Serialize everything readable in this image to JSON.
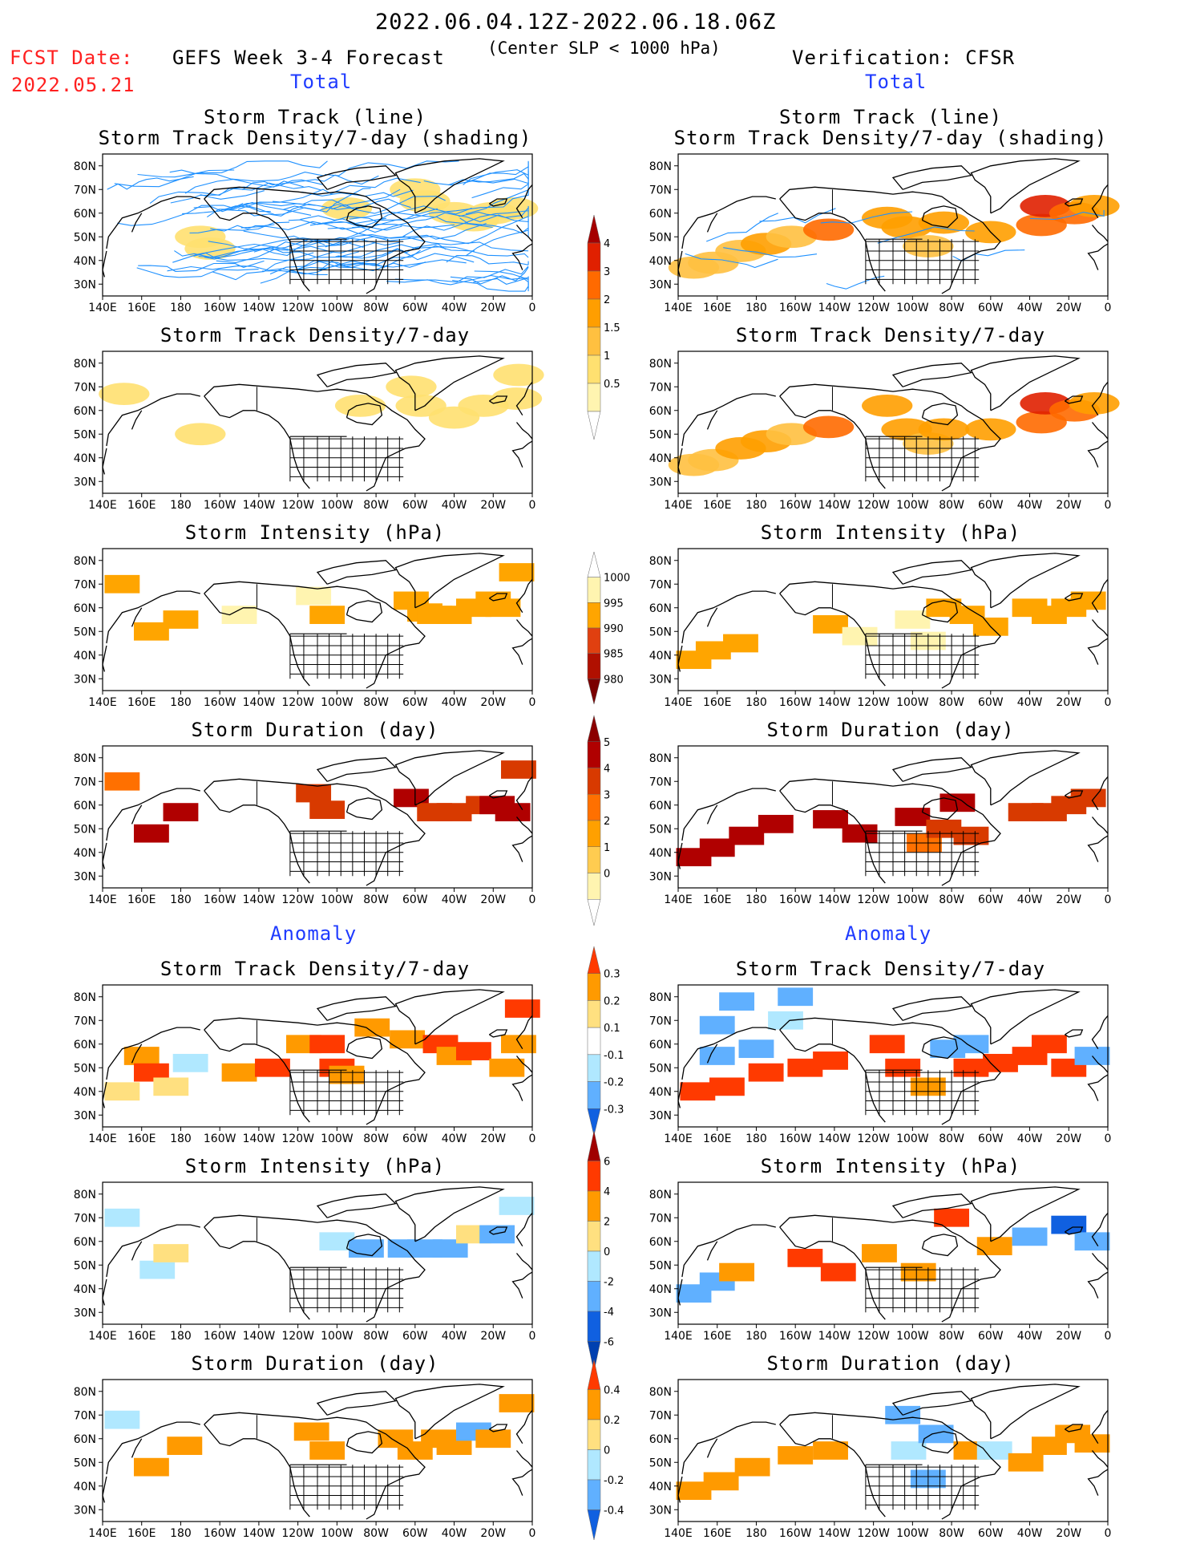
{
  "header": {
    "date_range": "2022.06.04.12Z-2022.06.18.06Z",
    "slp_condition": "(Center SLP < 1000 hPa)",
    "fcst_label": "FCST Date:",
    "fcst_date": "2022.05.21",
    "forecast_title": "GEFS Week 3-4 Forecast",
    "verification_title": "Verification: CFSR",
    "section_total": "Total",
    "section_anomaly": "Anomaly",
    "colors": {
      "fcst": "#ff2020",
      "section": "#1f3bff"
    }
  },
  "panels": {
    "track_line": "Storm Track (line)",
    "track_shading": "Storm Track Density/7-day (shading)",
    "density": "Storm Track Density/7-day",
    "intensity": "Storm Intensity (hPa)",
    "duration": "Storm Duration (day)"
  },
  "axes": {
    "x_ticks": [
      "140E",
      "160E",
      "180",
      "160W",
      "140W",
      "120W",
      "100W",
      "80W",
      "60W",
      "40W",
      "20W",
      "0"
    ],
    "y_ticks": [
      "80N",
      "70N",
      "60N",
      "50N",
      "40N",
      "30N"
    ]
  },
  "chart_data": [
    {
      "type": "heatmap",
      "panel": "forecast-total-track-line-density",
      "title": "Storm Track (line)",
      "subtitle": "Storm Track Density/7-day (shading)",
      "xlim": [
        140,
        360
      ],
      "ylim": [
        25,
        85
      ],
      "tracks_color": "#1e90ff",
      "cells": [
        [
          190,
          50,
          0.6
        ],
        [
          195,
          45,
          0.5
        ],
        [
          300,
          70,
          0.6
        ],
        [
          305,
          65,
          0.7
        ],
        [
          320,
          60,
          0.6
        ],
        [
          330,
          57,
          0.6
        ],
        [
          340,
          60,
          0.7
        ],
        [
          350,
          62,
          0.6
        ],
        [
          265,
          62,
          0.5
        ]
      ]
    },
    {
      "type": "heatmap",
      "panel": "verification-total-track-line-density",
      "title": "Storm Track (line)",
      "subtitle": "Storm Track Density/7-day (shading)",
      "xlim": [
        140,
        360
      ],
      "ylim": [
        25,
        85
      ],
      "tracks_color": "#1e90ff",
      "cells": [
        [
          148,
          37,
          1.2
        ],
        [
          158,
          39,
          1.3
        ],
        [
          172,
          44,
          1.4
        ],
        [
          185,
          47,
          1.5
        ],
        [
          198,
          50,
          1.3
        ],
        [
          217,
          53,
          2.6
        ],
        [
          247,
          58,
          1.5
        ],
        [
          257,
          54,
          1.6
        ],
        [
          268,
          46,
          1.0
        ],
        [
          276,
          56,
          1.5
        ],
        [
          300,
          52,
          1.7
        ],
        [
          326,
          55,
          2.3
        ],
        [
          328,
          63,
          3.2
        ],
        [
          343,
          60,
          2.0
        ],
        [
          353,
          63,
          1.7
        ]
      ]
    },
    {
      "type": "heatmap",
      "panel": "forecast-total-density",
      "title": "Storm Track Density/7-day",
      "xlim": [
        140,
        360
      ],
      "ylim": [
        25,
        85
      ],
      "cells": [
        [
          151,
          67,
          0.7
        ],
        [
          190,
          50,
          0.7
        ],
        [
          272,
          62,
          0.6
        ],
        [
          298,
          70,
          0.6
        ],
        [
          303,
          62,
          0.7
        ],
        [
          320,
          57,
          0.7
        ],
        [
          335,
          62,
          0.7
        ],
        [
          352,
          65,
          0.6
        ],
        [
          353,
          75,
          0.6
        ]
      ]
    },
    {
      "type": "heatmap",
      "panel": "verification-total-density",
      "title": "Storm Track Density/7-day",
      "xlim": [
        140,
        360
      ],
      "ylim": [
        25,
        85
      ],
      "cells": [
        [
          148,
          37,
          1.3
        ],
        [
          158,
          39,
          1.3
        ],
        [
          172,
          44,
          1.5
        ],
        [
          185,
          47,
          1.5
        ],
        [
          198,
          50,
          1.3
        ],
        [
          217,
          53,
          2.6
        ],
        [
          247,
          62,
          1.5
        ],
        [
          257,
          52,
          1.6
        ],
        [
          268,
          46,
          1.0
        ],
        [
          276,
          52,
          1.5
        ],
        [
          300,
          52,
          1.7
        ],
        [
          326,
          55,
          2.3
        ],
        [
          328,
          63,
          3.2
        ],
        [
          343,
          60,
          2.0
        ],
        [
          353,
          63,
          1.6
        ]
      ]
    },
    {
      "type": "heatmap",
      "panel": "forecast-total-intensity",
      "title": "Storm Intensity (hPa)",
      "xlim": [
        140,
        360
      ],
      "ylim": [
        25,
        85
      ],
      "cells": [
        [
          150,
          70,
          993
        ],
        [
          165,
          50,
          992
        ],
        [
          180,
          55,
          992
        ],
        [
          210,
          57,
          996
        ],
        [
          248,
          65,
          998
        ],
        [
          255,
          57,
          994
        ],
        [
          298,
          63,
          992
        ],
        [
          305,
          58,
          993
        ],
        [
          310,
          57,
          993
        ],
        [
          320,
          57,
          992
        ],
        [
          330,
          60,
          992
        ],
        [
          340,
          63,
          993
        ],
        [
          345,
          60,
          993
        ],
        [
          352,
          75,
          994
        ]
      ]
    },
    {
      "type": "heatmap",
      "panel": "verification-total-intensity",
      "title": "Storm Intensity (hPa)",
      "xlim": [
        140,
        360
      ],
      "ylim": [
        25,
        85
      ],
      "cells": [
        [
          148,
          38,
          993
        ],
        [
          158,
          42,
          993
        ],
        [
          172,
          45,
          993
        ],
        [
          218,
          53,
          994
        ],
        [
          233,
          48,
          996
        ],
        [
          260,
          55,
          995
        ],
        [
          268,
          46,
          997
        ],
        [
          276,
          60,
          990
        ],
        [
          288,
          57,
          993
        ],
        [
          300,
          52,
          994
        ],
        [
          320,
          60,
          992
        ],
        [
          330,
          57,
          991
        ],
        [
          340,
          60,
          991
        ],
        [
          350,
          63,
          991
        ]
      ]
    },
    {
      "type": "heatmap",
      "panel": "forecast-total-duration",
      "title": "Storm Duration (day)",
      "xlim": [
        140,
        360
      ],
      "ylim": [
        25,
        85
      ],
      "cells": [
        [
          150,
          70,
          2.5
        ],
        [
          165,
          48,
          4.2
        ],
        [
          180,
          57,
          4.5
        ],
        [
          248,
          65,
          3.0
        ],
        [
          255,
          58,
          3.0
        ],
        [
          298,
          63,
          4.0
        ],
        [
          310,
          57,
          3.5
        ],
        [
          320,
          57,
          3.5
        ],
        [
          335,
          60,
          3.5
        ],
        [
          342,
          60,
          4.2
        ],
        [
          350,
          57,
          4.5
        ],
        [
          353,
          75,
          3.5
        ]
      ]
    },
    {
      "type": "heatmap",
      "panel": "verification-total-duration",
      "title": "Storm Duration (day)",
      "xlim": [
        140,
        360
      ],
      "ylim": [
        25,
        85
      ],
      "cells": [
        [
          148,
          38,
          4.8
        ],
        [
          160,
          42,
          4.8
        ],
        [
          175,
          47,
          4.8
        ],
        [
          190,
          52,
          4.8
        ],
        [
          218,
          54,
          4.8
        ],
        [
          233,
          48,
          4.8
        ],
        [
          260,
          55,
          4.8
        ],
        [
          266,
          44,
          2.5
        ],
        [
          276,
          50,
          3.0
        ],
        [
          283,
          61,
          4.8
        ],
        [
          290,
          47,
          3.5
        ],
        [
          318,
          57,
          3.5
        ],
        [
          330,
          57,
          3.8
        ],
        [
          340,
          60,
          3.8
        ],
        [
          350,
          63,
          3.8
        ]
      ]
    },
    {
      "type": "heatmap",
      "panel": "forecast-anomaly-density",
      "title": "Storm Track Density/7-day",
      "xlim": [
        140,
        360
      ],
      "ylim": [
        25,
        85
      ],
      "cells": [
        [
          150,
          40,
          0.15
        ],
        [
          160,
          55,
          0.25
        ],
        [
          165,
          48,
          0.35
        ],
        [
          175,
          42,
          0.15
        ],
        [
          185,
          52,
          -0.15
        ],
        [
          210,
          48,
          0.25
        ],
        [
          227,
          50,
          0.35
        ],
        [
          243,
          60,
          0.25
        ],
        [
          255,
          60,
          0.3
        ],
        [
          260,
          50,
          0.3
        ],
        [
          265,
          47,
          0.25
        ],
        [
          278,
          67,
          0.2
        ],
        [
          296,
          62,
          0.25
        ],
        [
          313,
          60,
          0.3
        ],
        [
          320,
          55,
          0.25
        ],
        [
          330,
          57,
          0.3
        ],
        [
          347,
          50,
          0.25
        ],
        [
          353,
          60,
          0.2
        ],
        [
          355,
          75,
          0.3
        ]
      ]
    },
    {
      "type": "heatmap",
      "panel": "verification-anomaly-density",
      "title": "Storm Track Density/7-day",
      "xlim": [
        140,
        360
      ],
      "ylim": [
        25,
        85
      ],
      "cells": [
        [
          170,
          78,
          -0.25
        ],
        [
          200,
          80,
          -0.25
        ],
        [
          160,
          68,
          -0.25
        ],
        [
          195,
          70,
          -0.2
        ],
        [
          160,
          55,
          -0.25
        ],
        [
          180,
          58,
          -0.3
        ],
        [
          150,
          40,
          0.35
        ],
        [
          165,
          42,
          0.35
        ],
        [
          185,
          48,
          0.3
        ],
        [
          205,
          50,
          0.35
        ],
        [
          218,
          53,
          0.35
        ],
        [
          247,
          60,
          0.3
        ],
        [
          255,
          50,
          0.3
        ],
        [
          268,
          42,
          0.25
        ],
        [
          278,
          58,
          -0.25
        ],
        [
          290,
          60,
          -0.3
        ],
        [
          290,
          50,
          0.3
        ],
        [
          305,
          52,
          0.35
        ],
        [
          320,
          55,
          0.35
        ],
        [
          330,
          60,
          0.35
        ],
        [
          340,
          50,
          0.3
        ],
        [
          352,
          55,
          -0.25
        ]
      ]
    },
    {
      "type": "heatmap",
      "panel": "forecast-anomaly-intensity",
      "title": "Storm Intensity (hPa)",
      "xlim": [
        140,
        360
      ],
      "ylim": [
        25,
        85
      ],
      "cells": [
        [
          150,
          70,
          -1.5
        ],
        [
          168,
          48,
          -1.5
        ],
        [
          175,
          55,
          1.5
        ],
        [
          260,
          60,
          -1.5
        ],
        [
          275,
          57,
          -2.5
        ],
        [
          295,
          57,
          -2.5
        ],
        [
          305,
          57,
          -2.5
        ],
        [
          318,
          57,
          -2.5
        ],
        [
          330,
          63,
          1.5
        ],
        [
          342,
          63,
          -3.0
        ],
        [
          352,
          75,
          -1.5
        ]
      ]
    },
    {
      "type": "heatmap",
      "panel": "verification-anomaly-intensity",
      "title": "Storm Intensity (hPa)",
      "xlim": [
        140,
        360
      ],
      "ylim": [
        25,
        85
      ],
      "cells": [
        [
          148,
          38,
          -3.0
        ],
        [
          160,
          43,
          -2.5
        ],
        [
          170,
          47,
          3.0
        ],
        [
          205,
          53,
          5.0
        ],
        [
          222,
          47,
          4.5
        ],
        [
          243,
          55,
          3.0
        ],
        [
          263,
          47,
          2.5
        ],
        [
          280,
          70,
          5.5
        ],
        [
          302,
          58,
          3.0
        ],
        [
          320,
          62,
          -3.0
        ],
        [
          340,
          67,
          -4.5
        ],
        [
          352,
          60,
          -3.0
        ]
      ]
    },
    {
      "type": "heatmap",
      "panel": "forecast-anomaly-duration",
      "title": "Storm Duration (day)",
      "xlim": [
        140,
        360
      ],
      "ylim": [
        25,
        85
      ],
      "cells": [
        [
          150,
          68,
          -0.15
        ],
        [
          165,
          48,
          0.35
        ],
        [
          182,
          57,
          0.35
        ],
        [
          247,
          63,
          0.25
        ],
        [
          255,
          55,
          0.2
        ],
        [
          290,
          60,
          0.35
        ],
        [
          300,
          55,
          0.35
        ],
        [
          312,
          60,
          0.3
        ],
        [
          320,
          57,
          0.35
        ],
        [
          330,
          63,
          -0.3
        ],
        [
          340,
          60,
          0.35
        ],
        [
          352,
          75,
          0.3
        ]
      ]
    },
    {
      "type": "heatmap",
      "panel": "verification-anomaly-duration",
      "title": "Storm Duration (day)",
      "xlim": [
        140,
        360
      ],
      "ylim": [
        25,
        85
      ],
      "cells": [
        [
          148,
          38,
          0.35
        ],
        [
          162,
          42,
          0.35
        ],
        [
          178,
          48,
          0.35
        ],
        [
          200,
          53,
          0.35
        ],
        [
          218,
          55,
          0.35
        ],
        [
          255,
          70,
          -0.35
        ],
        [
          258,
          55,
          -0.2
        ],
        [
          268,
          43,
          -0.35
        ],
        [
          272,
          62,
          -0.35
        ],
        [
          290,
          55,
          0.25
        ],
        [
          302,
          55,
          -0.2
        ],
        [
          318,
          50,
          0.3
        ],
        [
          330,
          57,
          0.35
        ],
        [
          342,
          62,
          0.35
        ],
        [
          352,
          58,
          0.35
        ]
      ]
    }
  ],
  "colorbars": {
    "density_total": {
      "labels": [
        "4",
        "3",
        "2",
        "1.5",
        "1",
        "0.5"
      ],
      "colors": [
        "#a50000",
        "#e02000",
        "#ff6a00",
        "#ff9e00",
        "#ffc040",
        "#ffe070",
        "#fff4b0",
        "#ffffff"
      ]
    },
    "intensity_total": {
      "labels": [
        "1000",
        "995",
        "990",
        "985",
        "980"
      ],
      "colors": [
        "#ffffff",
        "#fff4b0",
        "#ffa500",
        "#e04010",
        "#b01000",
        "#7a0000"
      ]
    },
    "duration_total": {
      "labels": [
        "5",
        "4",
        "3",
        "2",
        "1",
        "0"
      ],
      "colors": [
        "#8b0000",
        "#b00000",
        "#d83a00",
        "#ff7000",
        "#ffa000",
        "#ffcc50",
        "#fff4b0",
        "#ffffff"
      ]
    },
    "density_anomaly": {
      "labels": [
        "0.3",
        "0.2",
        "0.1",
        "-0.1",
        "-0.2",
        "-0.3"
      ],
      "colors": [
        "#ff3a00",
        "#ff9a00",
        "#ffe080",
        "#ffffff",
        "#b0e8ff",
        "#60b0ff",
        "#1060e0"
      ]
    },
    "intensity_anomaly": {
      "labels": [
        "6",
        "4",
        "2",
        "0",
        "-2",
        "-4",
        "-6"
      ],
      "colors": [
        "#a00000",
        "#ff3a00",
        "#ff9a00",
        "#ffe080",
        "#b0e8ff",
        "#60b0ff",
        "#1060e0",
        "#0040b0"
      ]
    },
    "duration_anomaly": {
      "labels": [
        "0.4",
        "0.2",
        "0",
        "-0.2",
        "-0.4"
      ],
      "colors": [
        "#ff3a00",
        "#ff9a00",
        "#ffe080",
        "#b0e8ff",
        "#60b0ff",
        "#1060e0"
      ]
    }
  }
}
